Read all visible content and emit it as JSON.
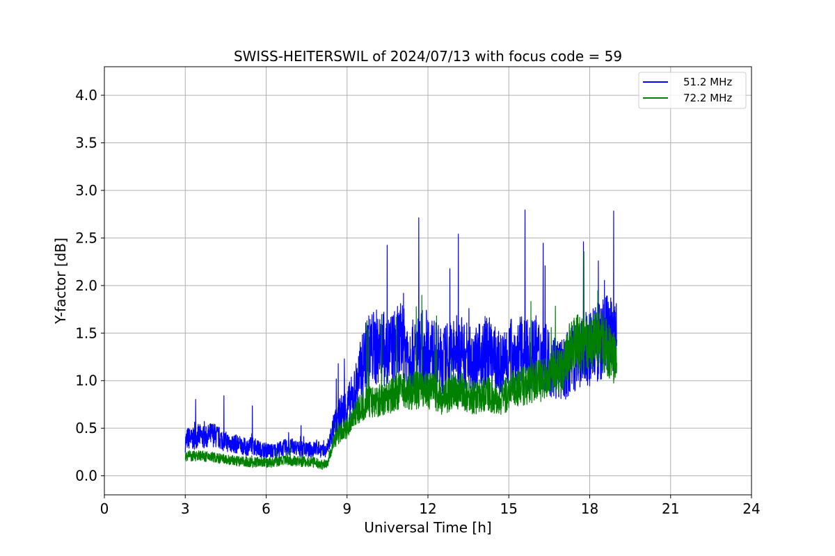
{
  "chart_data": {
    "type": "line",
    "title": "SWISS-HEITERSWIL of 2024/07/13 with focus code = 59",
    "xlabel": "Universal Time [h]",
    "ylabel": "Y-factor [dB]",
    "xlim": [
      0,
      24
    ],
    "ylim": [
      -0.2,
      4.3
    ],
    "xticks": [
      0,
      3,
      6,
      9,
      12,
      15,
      18,
      21,
      24
    ],
    "xtick_labels": [
      "0",
      "3",
      "6",
      "9",
      "12",
      "15",
      "18",
      "21",
      "24"
    ],
    "yticks": [
      0.0,
      0.5,
      1.0,
      1.5,
      2.0,
      2.5,
      3.0,
      3.5,
      4.0
    ],
    "ytick_labels": [
      "0.0",
      "0.5",
      "1.0",
      "1.5",
      "2.0",
      "2.5",
      "3.0",
      "3.5",
      "4.0"
    ],
    "grid": true,
    "legend_position": "top-right",
    "series": [
      {
        "name": "51.2 MHz",
        "color": "#0000ff",
        "x": [
          3.0,
          3.1,
          3.25,
          3.5,
          3.75,
          4.0,
          4.25,
          4.5,
          4.75,
          5.0,
          5.25,
          5.5,
          5.75,
          6.0,
          6.25,
          6.5,
          6.75,
          7.0,
          7.25,
          7.5,
          7.75,
          7.9,
          8.0,
          8.1,
          8.25,
          8.5,
          8.75,
          9.0,
          9.25,
          9.5,
          9.75,
          10.0,
          10.25,
          10.5,
          10.75,
          11.0,
          11.25,
          11.5,
          11.75,
          12.0,
          12.25,
          12.5,
          12.75,
          13.0,
          13.25,
          13.5,
          13.75,
          14.0,
          14.25,
          14.5,
          14.75,
          15.0,
          15.25,
          15.5,
          15.75,
          16.0,
          16.25,
          16.5,
          16.75,
          17.0,
          17.25,
          17.5,
          17.75,
          18.0,
          18.25,
          18.5,
          18.75,
          19.0
        ],
        "y": [
          0.35,
          0.4,
          0.38,
          0.42,
          0.4,
          0.44,
          0.4,
          0.36,
          0.34,
          0.33,
          0.3,
          0.32,
          0.28,
          0.27,
          0.26,
          0.28,
          0.3,
          0.3,
          0.28,
          0.27,
          0.28,
          0.3,
          0.28,
          0.25,
          0.27,
          0.5,
          0.65,
          0.72,
          0.85,
          1.1,
          1.3,
          1.35,
          1.35,
          1.3,
          1.35,
          1.4,
          1.3,
          1.25,
          1.35,
          1.35,
          1.25,
          1.2,
          1.25,
          1.3,
          1.3,
          1.25,
          1.2,
          1.25,
          1.3,
          1.2,
          1.15,
          1.3,
          1.25,
          1.3,
          1.25,
          1.3,
          1.25,
          1.2,
          1.15,
          1.1,
          1.2,
          1.25,
          1.3,
          1.35,
          1.4,
          1.45,
          1.5,
          1.4
        ]
      },
      {
        "name": "72.2 MHz",
        "color": "#008000",
        "x": [
          3.0,
          3.1,
          3.25,
          3.5,
          3.75,
          4.0,
          4.25,
          4.5,
          4.75,
          5.0,
          5.25,
          5.5,
          5.75,
          6.0,
          6.25,
          6.5,
          6.75,
          7.0,
          7.25,
          7.5,
          7.75,
          7.9,
          8.0,
          8.1,
          8.25,
          8.5,
          8.75,
          9.0,
          9.25,
          9.5,
          9.75,
          10.0,
          10.25,
          10.5,
          10.75,
          11.0,
          11.25,
          11.5,
          11.75,
          12.0,
          12.25,
          12.5,
          12.75,
          13.0,
          13.25,
          13.5,
          13.75,
          14.0,
          14.25,
          14.5,
          14.75,
          15.0,
          15.25,
          15.5,
          15.75,
          16.0,
          16.25,
          16.5,
          16.75,
          17.0,
          17.25,
          17.5,
          17.75,
          18.0,
          18.25,
          18.5,
          18.75,
          19.0
        ],
        "y": [
          0.2,
          0.22,
          0.2,
          0.22,
          0.2,
          0.2,
          0.18,
          0.17,
          0.16,
          0.15,
          0.15,
          0.14,
          0.15,
          0.14,
          0.14,
          0.15,
          0.16,
          0.16,
          0.15,
          0.15,
          0.14,
          0.13,
          0.12,
          0.12,
          0.12,
          0.35,
          0.45,
          0.5,
          0.65,
          0.7,
          0.78,
          0.78,
          0.8,
          0.82,
          0.85,
          0.9,
          0.88,
          0.9,
          0.9,
          0.9,
          0.88,
          0.82,
          0.85,
          0.88,
          0.9,
          0.85,
          0.82,
          0.85,
          0.88,
          0.82,
          0.8,
          0.9,
          0.92,
          0.95,
          0.95,
          1.0,
          1.0,
          1.05,
          1.1,
          1.1,
          1.35,
          1.4,
          1.35,
          1.4,
          1.45,
          1.4,
          1.3,
          1.2
        ]
      }
    ]
  }
}
